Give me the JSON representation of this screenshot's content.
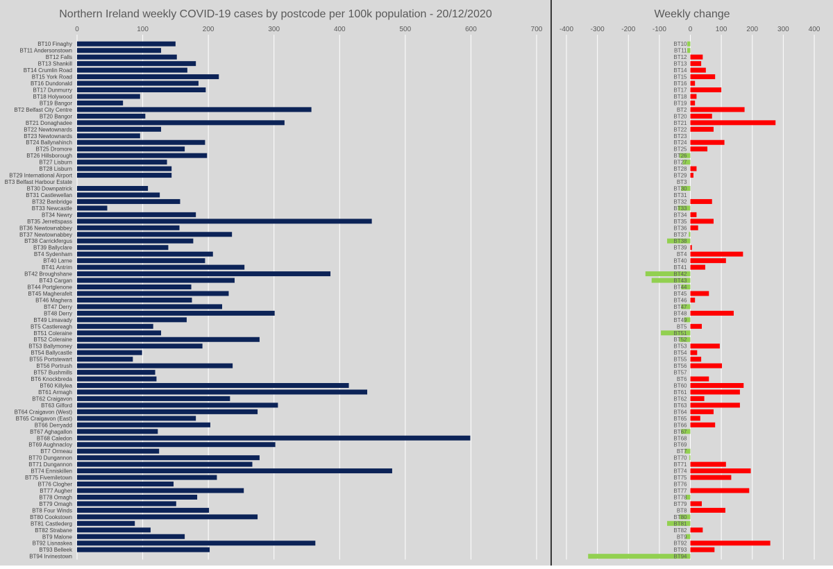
{
  "chart_data": [
    {
      "type": "bar",
      "orientation": "horizontal",
      "title": "Northern Ireland weekly COVID-19 cases by postcode per 100k population - 20/12/2020",
      "xlim": [
        0,
        700
      ],
      "ticks": [
        0,
        100,
        200,
        300,
        400,
        500,
        600,
        700
      ],
      "grid": true,
      "bar_color": "#0c2357",
      "categories": [
        "BT10 Finaghy",
        "BT11 Andersonstown",
        "BT12 Falls",
        "BT13 Shankill",
        "BT14 Crumlin Road",
        "BT15 York Road",
        "BT16 Dundonald",
        "BT17 Dunmurry",
        "BT18 Holywood",
        "BT19 Bangor",
        "BT2 Belfast City Centre",
        "BT20 Bangor",
        "BT21 Donaghadee",
        "BT22 Newtownards",
        "BT23 Newtownards",
        "BT24 Ballynahinch",
        "BT25 Dromore",
        "BT26 Hillsborough",
        "BT27 Lisburn",
        "BT28 Lisburn",
        "BT29 International Airport",
        "BT3 Belfast Harbour Estate",
        "BT30 Downpatrick",
        "BT31 Castlewellan",
        "BT32 Banbridge",
        "BT33 Newcastle",
        "BT34 Newry",
        "BT35 Jerrettspass",
        "BT36 Newtownabbey",
        "BT37 Newtownabbey",
        "BT38 Carrickfergus",
        "BT39 Ballyclare",
        "BT4 Sydenham",
        "BT40 Larne",
        "BT41 Antrim",
        "BT42 Broughshane",
        "BT43 Cargan",
        "BT44 Portglenone",
        "BT45 Magherafelt",
        "BT46 Maghera",
        "BT47 Derry",
        "BT48 Derry",
        "BT49 Limavady",
        "BT5 Castlereagh",
        "BT51 Coleraine",
        "BT52 Coleraine",
        "BT53 Ballymoney",
        "BT54 Ballycastle",
        "BT55 Portstewart",
        "BT56 Portrush",
        "BT57 Bushmills",
        "BT6 Knockbreda",
        "BT60 Killylea",
        "BT61 Armagh",
        "BT62 Craigavon",
        "BT63 Gilford",
        "BT64 Craigavon (West)",
        "BT65 Craigavon (East)",
        "BT66 Derryadd",
        "BT67 Aghagallon",
        "BT68 Caledon",
        "BT69 Aughnacloy",
        "BT7 Ormeau",
        "BT70 Dungannon",
        "BT71 Dungannon",
        "BT74 Enniskillen",
        "BT75 Fivemiletown",
        "BT76 Clogher",
        "BT77 Augher",
        "BT78 Omagh",
        "BT79 Omagh",
        "BT8 Four Winds",
        "BT80 Cookstown",
        "BT81 Castlederg",
        "BT82 Strabane",
        "BT9 Malone",
        "BT92 Lisnaskea",
        "BT93 Belleek",
        "BT94 Irvinestown"
      ],
      "values": [
        150,
        128,
        152,
        181,
        168,
        216,
        185,
        196,
        96,
        70,
        357,
        104,
        316,
        128,
        96,
        195,
        164,
        198,
        137,
        144,
        144,
        0,
        108,
        126,
        157,
        46,
        181,
        449,
        156,
        236,
        177,
        139,
        207,
        195,
        255,
        386,
        240,
        174,
        231,
        175,
        221,
        301,
        167,
        116,
        128,
        278,
        191,
        99,
        85,
        237,
        119,
        121,
        414,
        442,
        233,
        306,
        275,
        181,
        203,
        123,
        599,
        302,
        125,
        278,
        267,
        480,
        213,
        147,
        254,
        183,
        151,
        201,
        275,
        88,
        112,
        164,
        363,
        202,
        0
      ]
    },
    {
      "type": "bar",
      "orientation": "horizontal",
      "title": "Weekly change",
      "xlim": [
        -400,
        400
      ],
      "ticks": [
        -400,
        -300,
        -200,
        -100,
        0,
        100,
        200,
        300,
        400
      ],
      "grid": true,
      "positive_color": "#ff0000",
      "negative_color": "#92d050",
      "categories": [
        "BT10",
        "BT11",
        "BT12",
        "BT13",
        "BT14",
        "BT15",
        "BT16",
        "BT17",
        "BT18",
        "BT19",
        "BT2",
        "BT20",
        "BT21",
        "BT22",
        "BT23",
        "BT24",
        "BT25",
        "BT26",
        "BT27",
        "BT28",
        "BT29",
        "BT3",
        "BT30",
        "BT31",
        "BT32",
        "BT33",
        "BT34",
        "BT35",
        "BT36",
        "BT37",
        "BT38",
        "BT39",
        "BT4",
        "BT40",
        "BT41",
        "BT42",
        "BT43",
        "BT44",
        "BT45",
        "BT46",
        "BT47",
        "BT48",
        "BT49",
        "BT5",
        "BT51",
        "BT52",
        "BT53",
        "BT54",
        "BT55",
        "BT56",
        "BT57",
        "BT6",
        "BT60",
        "BT61",
        "BT62",
        "BT63",
        "BT64",
        "BT65",
        "BT66",
        "BT67",
        "BT68",
        "BT69",
        "BT7",
        "BT70",
        "BT71",
        "BT74",
        "BT75",
        "BT76",
        "BT77",
        "BT78",
        "BT79",
        "BT8",
        "BT80",
        "BT81",
        "BT82",
        "BT9",
        "BT92",
        "BT93",
        "BT94"
      ],
      "values": [
        -10,
        -10,
        40,
        35,
        50,
        80,
        15,
        100,
        20,
        15,
        175,
        70,
        275,
        75,
        0,
        110,
        55,
        -35,
        -25,
        20,
        10,
        0,
        -30,
        0,
        70,
        -40,
        20,
        75,
        25,
        -5,
        -75,
        5,
        170,
        115,
        48,
        -145,
        -125,
        -30,
        60,
        15,
        -30,
        140,
        -20,
        37,
        -95,
        -35,
        95,
        22,
        35,
        102,
        0,
        60,
        172,
        160,
        45,
        160,
        75,
        32,
        80,
        -30,
        0,
        0,
        -18,
        -3,
        115,
        195,
        132,
        0,
        190,
        -15,
        37,
        113,
        -35,
        -75,
        40,
        -15,
        258,
        78,
        -330
      ]
    }
  ]
}
